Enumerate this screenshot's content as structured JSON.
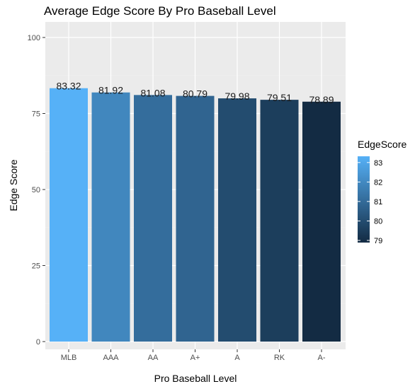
{
  "chart_data": {
    "type": "bar",
    "title": "Average Edge Score By Pro Baseball Level",
    "xlabel": "Pro Baseball Level",
    "ylabel": "Edge Score",
    "categories": [
      "MLB",
      "AAA",
      "AA",
      "A+",
      "A",
      "RK",
      "A-"
    ],
    "values": [
      83.32,
      81.92,
      81.08,
      80.79,
      79.98,
      79.51,
      78.89
    ],
    "data_labels": [
      "83.32",
      "81.92",
      "81.08",
      "80.79",
      "79.98",
      "79.51",
      "78.89"
    ],
    "ylim": [
      0,
      100
    ],
    "yticks": [
      0,
      25,
      50,
      75,
      100
    ],
    "grid": true,
    "legend": {
      "title": "EdgeScore",
      "placement": "right",
      "type": "colorbar",
      "range": [
        78.89,
        83.32
      ],
      "ticks": [
        83,
        82,
        81,
        80,
        79
      ],
      "color_low": "#132B43",
      "color_high": "#56B1F7"
    },
    "colors": {
      "panel_background": "#EBEBEB",
      "grid_major": "#FFFFFF",
      "grid_minor": "#F2F2F2"
    }
  }
}
